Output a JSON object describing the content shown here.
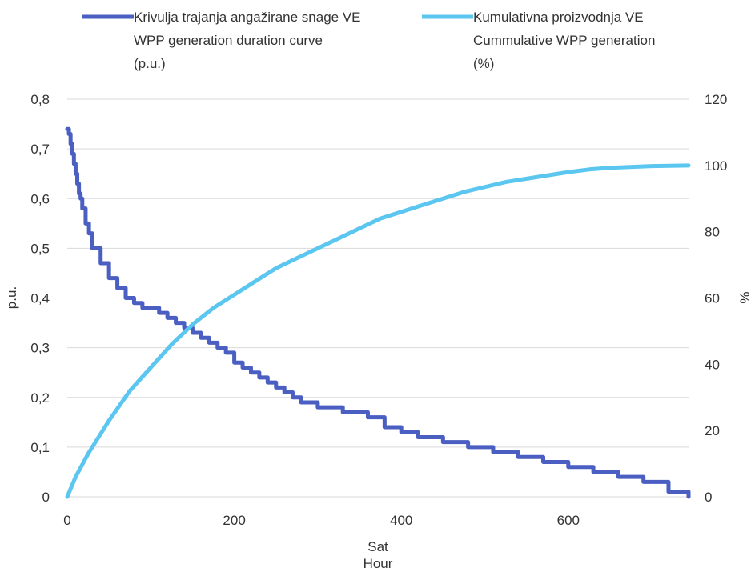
{
  "chart_data": {
    "type": "line",
    "legend_position": "top",
    "grid": true,
    "colors": {
      "series1": "#4A5FC1",
      "series2": "#5BC6EF",
      "grid": "#D9D9D9",
      "text": "#333333"
    },
    "xlabel": [
      "Sat",
      "Hour"
    ],
    "ylabel_left": "p.u.",
    "ylabel_right": "%",
    "xlim": [
      0,
      744
    ],
    "ylim_left": [
      0,
      0.8
    ],
    "ylim_right": [
      0,
      120
    ],
    "x_ticks": [
      "0",
      "200",
      "400",
      "600"
    ],
    "y_left_ticks": [
      "0",
      "0,1",
      "0,2",
      "0,3",
      "0,4",
      "0,5",
      "0,6",
      "0,7",
      "0,8"
    ],
    "y_right_ticks": [
      "0",
      "20",
      "40",
      "60",
      "80",
      "100",
      "120"
    ],
    "series": [
      {
        "name": [
          "Krivulja trajanja angažirane snage VE",
          "WPP generation duration curve",
          "(p.u.)"
        ],
        "axis": "left",
        "x": [
          0,
          2,
          4,
          6,
          8,
          10,
          12,
          14,
          16,
          18,
          22,
          26,
          30,
          40,
          50,
          60,
          70,
          80,
          90,
          100,
          110,
          120,
          130,
          140,
          150,
          160,
          170,
          180,
          190,
          200,
          210,
          220,
          230,
          240,
          250,
          260,
          270,
          280,
          300,
          330,
          360,
          380,
          400,
          420,
          450,
          480,
          510,
          540,
          570,
          600,
          630,
          660,
          690,
          720,
          744
        ],
        "values": [
          0.74,
          0.73,
          0.71,
          0.69,
          0.67,
          0.65,
          0.63,
          0.61,
          0.6,
          0.58,
          0.55,
          0.53,
          0.5,
          0.47,
          0.44,
          0.42,
          0.4,
          0.39,
          0.38,
          0.38,
          0.37,
          0.36,
          0.35,
          0.34,
          0.33,
          0.32,
          0.31,
          0.3,
          0.29,
          0.27,
          0.26,
          0.25,
          0.24,
          0.23,
          0.22,
          0.21,
          0.2,
          0.19,
          0.18,
          0.17,
          0.16,
          0.14,
          0.13,
          0.12,
          0.11,
          0.1,
          0.09,
          0.08,
          0.07,
          0.06,
          0.05,
          0.04,
          0.03,
          0.01,
          0.0
        ]
      },
      {
        "name": [
          "Kumulativna proizvodnja VE",
          "Cummulative WPP generation",
          "(%)"
        ],
        "axis": "right",
        "x": [
          0,
          10,
          25,
          50,
          75,
          100,
          125,
          150,
          175,
          200,
          225,
          250,
          275,
          300,
          325,
          350,
          375,
          400,
          425,
          450,
          475,
          500,
          525,
          550,
          575,
          600,
          625,
          650,
          700,
          744
        ],
        "values": [
          0,
          6,
          13,
          23,
          32,
          39,
          46,
          52,
          57,
          61,
          65,
          69,
          72,
          75,
          78,
          81,
          84,
          86,
          88,
          90,
          92,
          93.5,
          95,
          96,
          97,
          98,
          98.8,
          99.3,
          99.8,
          100
        ]
      }
    ]
  }
}
